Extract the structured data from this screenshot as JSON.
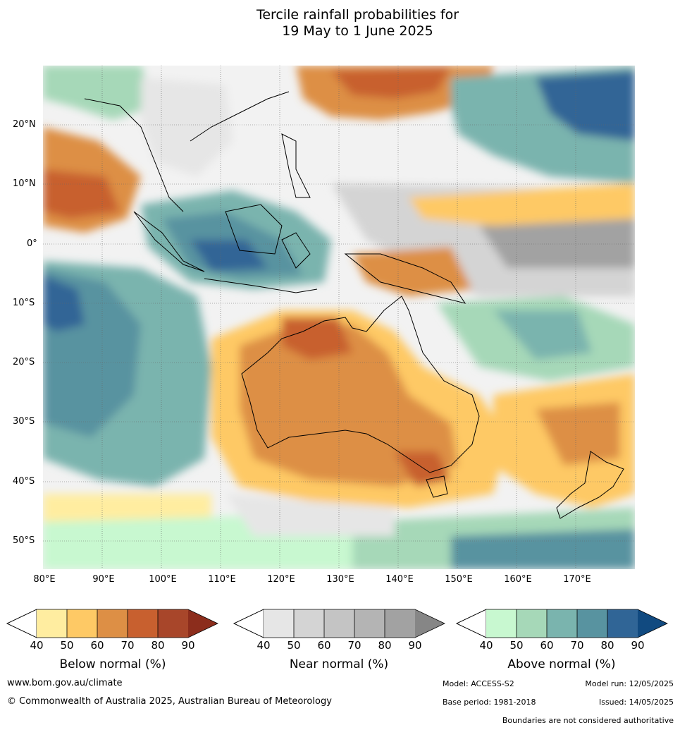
{
  "title_line1": "Tercile rainfall probabilities for",
  "title_line2": "19 May to 1 June 2025",
  "map": {
    "lat_labels": [
      "20°N",
      "10°N",
      "0°",
      "10°S",
      "20°S",
      "30°S",
      "40°S",
      "50°S"
    ],
    "lon_labels": [
      "80°E",
      "90°E",
      "100°E",
      "110°E",
      "120°E",
      "130°E",
      "140°E",
      "150°E",
      "160°E",
      "170°E"
    ]
  },
  "legend": {
    "ticks": [
      "40",
      "50",
      "60",
      "70",
      "80",
      "90"
    ],
    "below": {
      "title": "Below normal (%)",
      "colors": [
        "#ffeda0",
        "#fec965",
        "#dd8f45",
        "#c8602f",
        "#a8462a",
        "#8c2d1c"
      ]
    },
    "near": {
      "title": "Near normal (%)",
      "colors": [
        "#e6e6e6",
        "#d4d4d4",
        "#c4c4c4",
        "#b4b4b4",
        "#a2a2a2",
        "#868686"
      ]
    },
    "above": {
      "title": "Above normal (%)",
      "colors": [
        "#c8f8d0",
        "#a6d8b8",
        "#7ab4ae",
        "#5893a0",
        "#306596",
        "#114a80"
      ]
    }
  },
  "footer": {
    "website": "www.bom.gov.au/climate",
    "copyright": "© Commonwealth of Australia 2025, Australian Bureau of Meteorology",
    "model": "Model: ACCESS-S2",
    "model_run": "Model run: 12/05/2025",
    "base_period": "Base period: 1981-2018",
    "issued": "Issued: 14/05/2025",
    "disclaimer": "Boundaries are not considered authoritative"
  }
}
